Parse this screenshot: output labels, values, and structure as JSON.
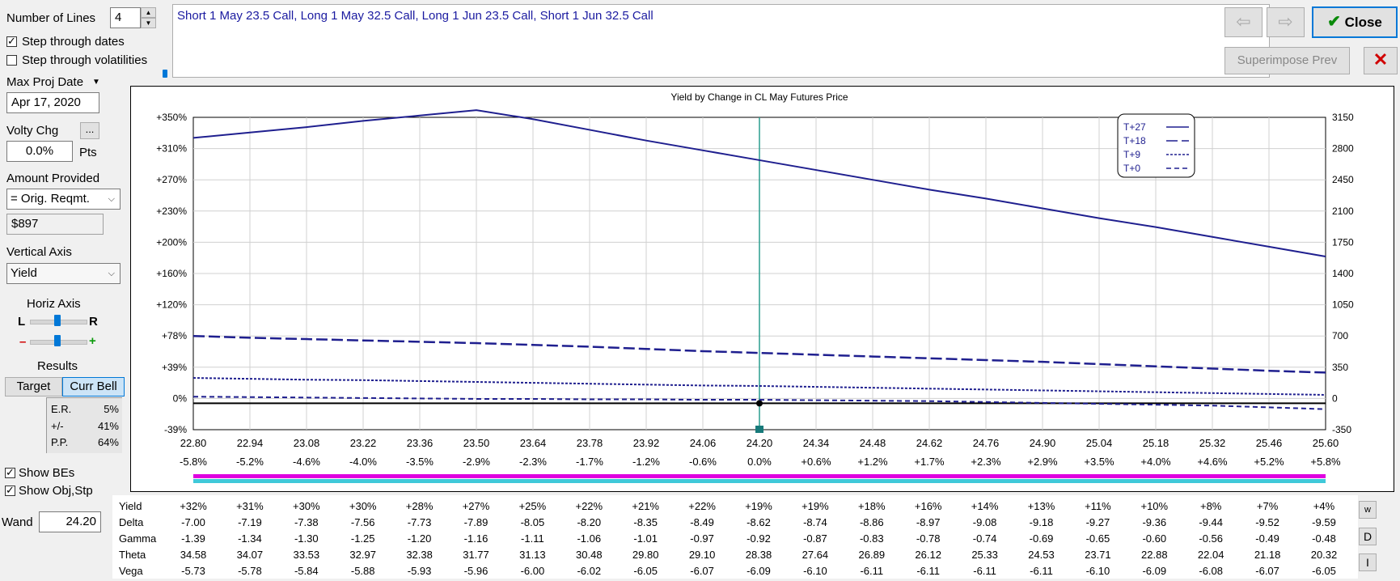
{
  "left_panel": {
    "num_lines_label": "Number of Lines",
    "num_lines_value": "4",
    "step_dates_label": "Step through dates",
    "step_dates_checked": true,
    "step_vols_label": "Step through volatilities",
    "step_vols_checked": false,
    "max_proj_label": "Max Proj Date",
    "max_proj_value": "Apr 17, 2020",
    "volty_label": "Volty Chg",
    "volty_btn": "...",
    "volty_value": "0.0%",
    "volty_unit": "Pts",
    "amount_label": "Amount Provided",
    "amount_select": "= Orig. Reqmt.",
    "amount_value": "$897",
    "vert_axis_label": "Vertical Axis",
    "vert_axis_select": "Yield",
    "horiz_axis_label": "Horiz Axis",
    "horiz_l": "L",
    "horiz_r": "R",
    "minus": "–",
    "plus": "+",
    "results_label": "Results",
    "target_btn": "Target",
    "curr_bell_btn": "Curr Bell",
    "results": [
      {
        "label": "E.R.",
        "value": "5%"
      },
      {
        "label": "+/-",
        "value": "41%"
      },
      {
        "label": "P.P.",
        "value": "64%"
      }
    ],
    "show_bes_label": "Show BEs",
    "show_bes_checked": true,
    "show_obj_label": "Show Obj,Stp",
    "show_obj_checked": true,
    "wand_label": "Wand",
    "wand_value": "24.20"
  },
  "positions_text": "Short 1 May 23.5 Call, Long 1 May 32.5 Call, Long 1 Jun 23.5 Call, Short 1 Jun 32.5 Call",
  "toolbar": {
    "prev_icon": "⇦",
    "next_icon": "⇨",
    "close_label": "Close",
    "superimpose_label": "Superimpose Prev"
  },
  "icons": {
    "back": "arrow-left-icon",
    "forward": "arrow-right-icon",
    "close_check": "checkmark-icon",
    "remove": "red-x-icon"
  },
  "colors": {
    "series": "#1f1f8f",
    "zero_line": "#000000",
    "wand_line": "#2a9d8f",
    "magenta_bar": "#e000e0",
    "cyan_bar": "#3fc9d9"
  },
  "chart_data": {
    "type": "line",
    "title": "Yield by Change in CL May Futures Price",
    "x": [
      22.8,
      22.94,
      23.08,
      23.22,
      23.36,
      23.5,
      23.64,
      23.78,
      23.92,
      24.06,
      24.2,
      24.34,
      24.48,
      24.62,
      24.76,
      24.9,
      25.04,
      25.18,
      25.32,
      25.46,
      25.6
    ],
    "x_tick_labels": [
      "22.80",
      "22.94",
      "23.08",
      "23.22",
      "23.36",
      "23.50",
      "23.64",
      "23.78",
      "23.92",
      "24.06",
      "24.20",
      "24.34",
      "24.48",
      "24.62",
      "24.76",
      "24.90",
      "25.04",
      "25.18",
      "25.32",
      "25.46",
      "25.60"
    ],
    "x_pct_labels": [
      "-5.8%",
      "-5.2%",
      "-4.6%",
      "-4.0%",
      "-3.5%",
      "-2.9%",
      "-2.3%",
      "-1.7%",
      "-1.2%",
      "-0.6%",
      "0.0%",
      "+0.6%",
      "+1.2%",
      "+1.7%",
      "+2.3%",
      "+2.9%",
      "+3.5%",
      "+4.0%",
      "+4.6%",
      "+5.2%",
      "+5.8%"
    ],
    "y_left_ticks": [
      "+350%",
      "+310%",
      "+270%",
      "+230%",
      "+200%",
      "+160%",
      "+120%",
      "+78%",
      "+39%",
      "0%",
      "-39%"
    ],
    "y_right_ticks": [
      "3150",
      "2800",
      "2450",
      "2100",
      "1750",
      "1400",
      "1050",
      "700",
      "350",
      "0",
      "-350"
    ],
    "ylim": [
      -350,
      3150
    ],
    "grid": true,
    "legend_position": "top-right",
    "wand_x": 24.2,
    "series": [
      {
        "name": "T+27",
        "style": "solid",
        "values": [
          2920,
          2980,
          3040,
          3110,
          3170,
          3230,
          3130,
          3010,
          2890,
          2780,
          2670,
          2560,
          2450,
          2340,
          2240,
          2130,
          2020,
          1920,
          1810,
          1700,
          1590
        ]
      },
      {
        "name": "T+18",
        "style": "longdash",
        "values": [
          700,
          680,
          665,
          650,
          635,
          620,
          600,
          580,
          555,
          530,
          510,
          490,
          470,
          450,
          430,
          410,
          385,
          360,
          335,
          310,
          290
        ]
      },
      {
        "name": "T+9",
        "style": "dot",
        "values": [
          230,
          220,
          210,
          205,
          195,
          185,
          175,
          165,
          155,
          145,
          140,
          130,
          120,
          110,
          100,
          90,
          80,
          70,
          60,
          50,
          40
        ]
      },
      {
        "name": "T+0",
        "style": "shortdash",
        "values": [
          20,
          15,
          10,
          5,
          0,
          -5,
          -5,
          -10,
          -10,
          -15,
          -15,
          -20,
          -25,
          -30,
          -40,
          -50,
          -60,
          -70,
          -80,
          -100,
          -120
        ]
      }
    ]
  },
  "greeks_table": {
    "rows": [
      {
        "label": "Yield",
        "values": [
          "+32%",
          "+31%",
          "+30%",
          "+30%",
          "+28%",
          "+27%",
          "+25%",
          "+22%",
          "+21%",
          "+22%",
          "+19%",
          "+19%",
          "+18%",
          "+16%",
          "+14%",
          "+13%",
          "+11%",
          "+10%",
          "+8%",
          "+7%",
          "+4%"
        ]
      },
      {
        "label": "Delta",
        "values": [
          "-7.00",
          "-7.19",
          "-7.38",
          "-7.56",
          "-7.73",
          "-7.89",
          "-8.05",
          "-8.20",
          "-8.35",
          "-8.49",
          "-8.62",
          "-8.74",
          "-8.86",
          "-8.97",
          "-9.08",
          "-9.18",
          "-9.27",
          "-9.36",
          "-9.44",
          "-9.52",
          "-9.59"
        ]
      },
      {
        "label": "Gamma",
        "values": [
          "-1.39",
          "-1.34",
          "-1.30",
          "-1.25",
          "-1.20",
          "-1.16",
          "-1.11",
          "-1.06",
          "-1.01",
          "-0.97",
          "-0.92",
          "-0.87",
          "-0.83",
          "-0.78",
          "-0.74",
          "-0.69",
          "-0.65",
          "-0.60",
          "-0.56",
          "-0.49",
          "-0.48"
        ]
      },
      {
        "label": "Theta",
        "values": [
          "34.58",
          "34.07",
          "33.53",
          "32.97",
          "32.38",
          "31.77",
          "31.13",
          "30.48",
          "29.80",
          "29.10",
          "28.38",
          "27.64",
          "26.89",
          "26.12",
          "25.33",
          "24.53",
          "23.71",
          "22.88",
          "22.04",
          "21.18",
          "20.32"
        ]
      },
      {
        "label": "Vega",
        "values": [
          "-5.73",
          "-5.78",
          "-5.84",
          "-5.88",
          "-5.93",
          "-5.96",
          "-6.00",
          "-6.02",
          "-6.05",
          "-6.07",
          "-6.09",
          "-6.10",
          "-6.11",
          "-6.11",
          "-6.11",
          "-6.11",
          "-6.10",
          "-6.09",
          "-6.08",
          "-6.07",
          "-6.05"
        ]
      }
    ],
    "side_buttons": [
      "w",
      "D",
      "I"
    ]
  }
}
